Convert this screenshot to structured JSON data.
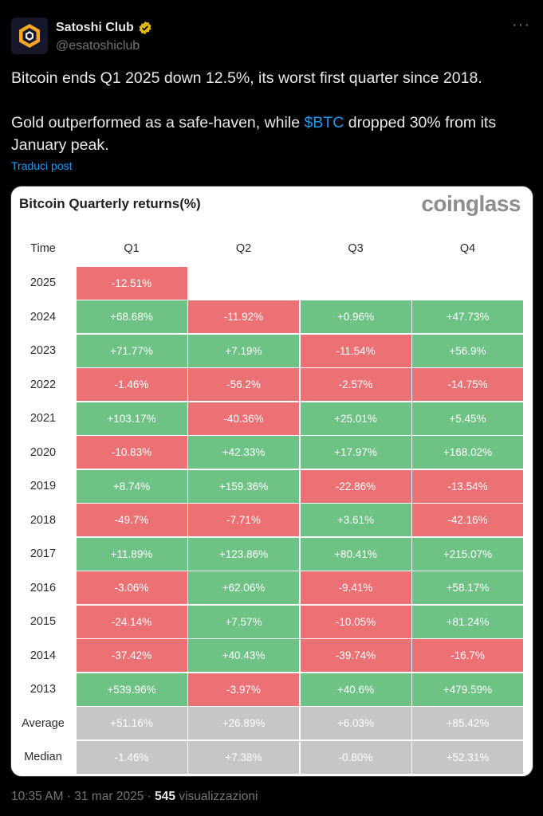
{
  "author": {
    "name": "Satoshi Club",
    "handle": "@esatoshiclub",
    "verified": true
  },
  "more_label": "···",
  "tweet": {
    "line1": "Bitcoin ends Q1 2025 down 12.5%, its worst first quarter since 2018.",
    "line2_before": "Gold outperformed as a safe-haven, while ",
    "cashtag": "$BTC",
    "line2_after": " dropped 30% from its January peak."
  },
  "translate_label": "Traduci post",
  "card": {
    "title": "Bitcoin Quarterly returns(%)",
    "brand": "coinglass",
    "colors": {
      "positive": "#6fc285",
      "negative": "#eb7174",
      "stat": "#c6c6c6"
    },
    "chart_data": {
      "type": "table",
      "title": "Bitcoin Quarterly returns(%)",
      "columns": [
        "Time",
        "Q1",
        "Q2",
        "Q3",
        "Q4"
      ],
      "rows": [
        {
          "label": "2025",
          "values": [
            "-12.51%",
            "",
            "",
            ""
          ],
          "kind": "year"
        },
        {
          "label": "2024",
          "values": [
            "+68.68%",
            "-11.92%",
            "+0.96%",
            "+47.73%"
          ],
          "kind": "year"
        },
        {
          "label": "2023",
          "values": [
            "+71.77%",
            "+7.19%",
            "-11.54%",
            "+56.9%"
          ],
          "kind": "year"
        },
        {
          "label": "2022",
          "values": [
            "-1.46%",
            "-56.2%",
            "-2.57%",
            "-14.75%"
          ],
          "kind": "year"
        },
        {
          "label": "2021",
          "values": [
            "+103.17%",
            "-40.36%",
            "+25.01%",
            "+5.45%"
          ],
          "kind": "year"
        },
        {
          "label": "2020",
          "values": [
            "-10.83%",
            "+42.33%",
            "+17.97%",
            "+168.02%"
          ],
          "kind": "year"
        },
        {
          "label": "2019",
          "values": [
            "+8.74%",
            "+159.36%",
            "-22.86%",
            "-13.54%"
          ],
          "kind": "year"
        },
        {
          "label": "2018",
          "values": [
            "-49.7%",
            "-7.71%",
            "+3.61%",
            "-42.16%"
          ],
          "kind": "year"
        },
        {
          "label": "2017",
          "values": [
            "+11.89%",
            "+123.86%",
            "+80.41%",
            "+215.07%"
          ],
          "kind": "year"
        },
        {
          "label": "2016",
          "values": [
            "-3.06%",
            "+62.06%",
            "-9.41%",
            "+58.17%"
          ],
          "kind": "year"
        },
        {
          "label": "2015",
          "values": [
            "-24.14%",
            "+7.57%",
            "-10.05%",
            "+81.24%"
          ],
          "kind": "year"
        },
        {
          "label": "2014",
          "values": [
            "-37.42%",
            "+40.43%",
            "-39.74%",
            "-16.7%"
          ],
          "kind": "year"
        },
        {
          "label": "2013",
          "values": [
            "+539.96%",
            "-3.97%",
            "+40.6%",
            "+479.59%"
          ],
          "kind": "year"
        },
        {
          "label": "Average",
          "values": [
            "+51.16%",
            "+26.89%",
            "+6.03%",
            "+85.42%"
          ],
          "kind": "stat"
        },
        {
          "label": "Median",
          "values": [
            "-1.46%",
            "+7.38%",
            "-0.80%",
            "+52.31%"
          ],
          "kind": "stat"
        }
      ]
    }
  },
  "footer": {
    "time": "10:35 AM",
    "sep": "·",
    "date": "31 mar 2025",
    "views_count": "545",
    "views_label": "visualizzazioni"
  }
}
